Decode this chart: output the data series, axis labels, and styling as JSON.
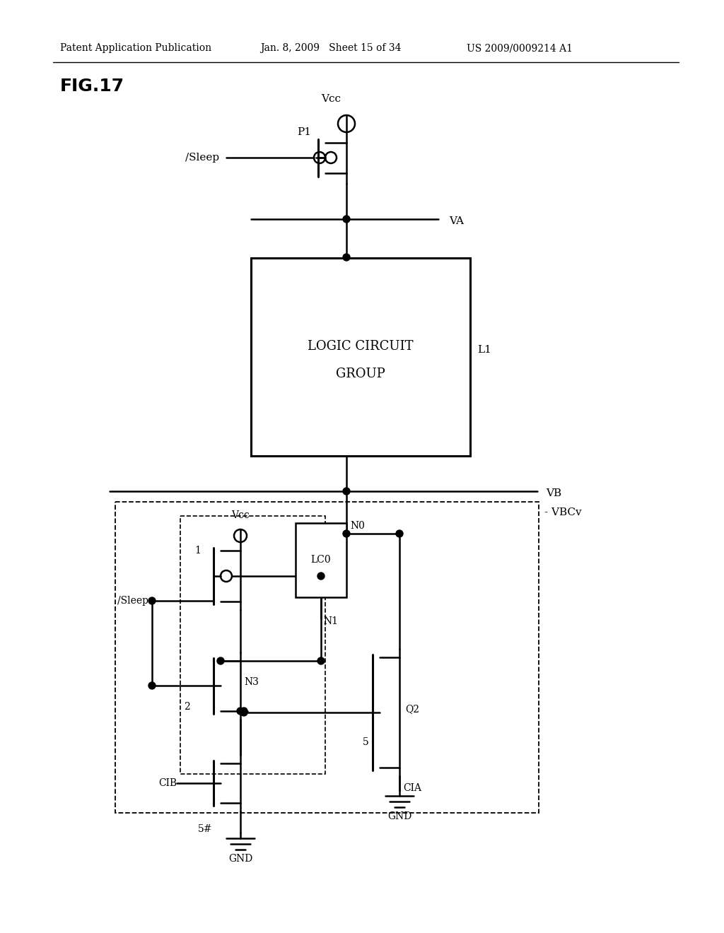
{
  "bg_color": "#ffffff",
  "header_left": "Patent Application Publication",
  "header_mid": "Jan. 8, 2009   Sheet 15 of 34",
  "header_right": "US 2009/0009214 A1",
  "fig_label": "FIG.17",
  "logic_box_label": "LOGIC CIRCUIT\nGROUP"
}
